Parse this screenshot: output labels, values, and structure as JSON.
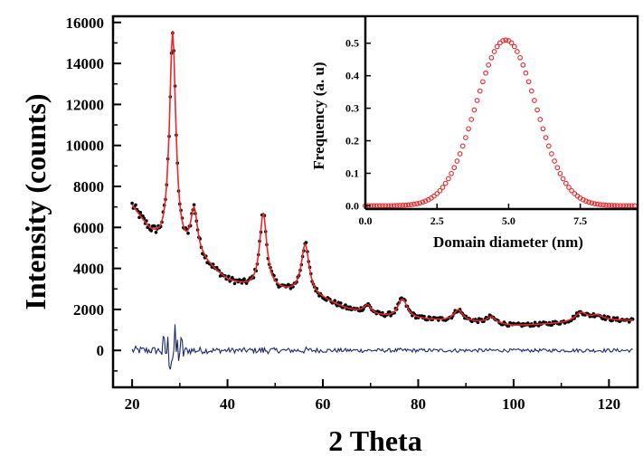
{
  "chart_data": [
    {
      "type": "scatter",
      "subtype": "xrd_rietveld",
      "title": "",
      "xlabel": "2 Theta",
      "ylabel": "Intensity (counts)",
      "xlim": [
        16,
        126
      ],
      "ylim": [
        -1800,
        16300
      ],
      "xticks": [
        20,
        40,
        60,
        80,
        100,
        120
      ],
      "yticks": [
        0,
        2000,
        4000,
        6000,
        8000,
        10000,
        12000,
        14000,
        16000
      ],
      "series": [
        {
          "role": "observed",
          "style": "black dots",
          "color": "#000000"
        },
        {
          "role": "calculated",
          "style": "red line",
          "color": "#e8282a"
        },
        {
          "role": "difference",
          "style": "dark blue line",
          "color": "#1c2a6e",
          "offset": 0
        }
      ],
      "background_points": [
        [
          20,
          7000
        ],
        [
          22,
          6300
        ],
        [
          24,
          5600
        ],
        [
          26,
          5100
        ],
        [
          30,
          4600
        ],
        [
          35,
          4200
        ],
        [
          40,
          3350
        ],
        [
          45,
          3000
        ],
        [
          50,
          2900
        ],
        [
          55,
          2700
        ],
        [
          60,
          2450
        ],
        [
          65,
          2000
        ],
        [
          70,
          1700
        ],
        [
          75,
          1550
        ],
        [
          80,
          1500
        ],
        [
          85,
          1450
        ],
        [
          90,
          1400
        ],
        [
          95,
          1320
        ],
        [
          100,
          1200
        ],
        [
          105,
          1250
        ],
        [
          110,
          1300
        ],
        [
          115,
          1380
        ],
        [
          120,
          1450
        ],
        [
          125,
          1450
        ]
      ],
      "peaks": [
        {
          "center": 28.5,
          "height": 10700,
          "width": 0.8
        },
        {
          "center": 33.0,
          "height": 2300,
          "width": 0.9
        },
        {
          "center": 47.5,
          "height": 3700,
          "width": 0.9
        },
        {
          "center": 56.3,
          "height": 2500,
          "width": 1.0
        },
        {
          "center": 69.4,
          "height": 450,
          "width": 1.0
        },
        {
          "center": 76.7,
          "height": 950,
          "width": 1.2
        },
        {
          "center": 88.4,
          "height": 550,
          "width": 1.1
        },
        {
          "center": 95.3,
          "height": 300,
          "width": 1.1
        },
        {
          "center": 114.1,
          "height": 450,
          "width": 1.6
        },
        {
          "center": 117.5,
          "height": 250,
          "width": 1.5
        }
      ],
      "x_range": [
        20,
        125
      ]
    },
    {
      "type": "scatter",
      "subtype": "inset_distribution",
      "title": "",
      "xlabel": "Domain diameter (nm)",
      "ylabel": "Frequency (a. u)",
      "xlim": [
        0,
        9.5
      ],
      "ylim": [
        -0.01,
        0.58
      ],
      "xticks": [
        0.0,
        2.5,
        5.0,
        7.5
      ],
      "xtick_labels": [
        "0.0",
        "2.5",
        "5.0",
        "7.5"
      ],
      "yticks": [
        0.0,
        0.1,
        0.2,
        0.3,
        0.4,
        0.5
      ],
      "ytick_labels": [
        "0.0",
        "0.1",
        "0.2",
        "0.3",
        "0.4",
        "0.5"
      ],
      "series": [
        {
          "marker": "open circle",
          "color": "#e8282a",
          "distribution": "gaussian",
          "peak_x": 4.9,
          "peak_y": 0.51,
          "sigma": 1.05,
          "x_start": 0.0,
          "x_end": 9.4,
          "step": 0.1
        }
      ]
    }
  ]
}
